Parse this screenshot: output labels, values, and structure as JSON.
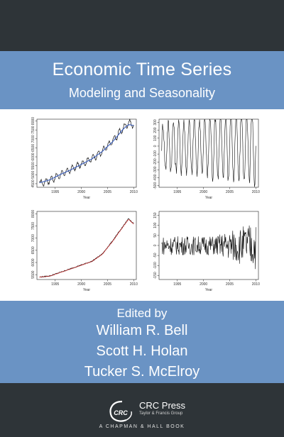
{
  "cover": {
    "title": "Economic Time Series",
    "subtitle": "Modeling and Seasonality",
    "edited_by": "Edited by",
    "editors": [
      "William R. Bell",
      "Scott H. Holan",
      "Tucker S. McElroy"
    ],
    "publisher_logo_text": "CRC",
    "publisher_name": "CRC Press",
    "publisher_group": "Taylor & Francis Group",
    "series_line": "A CHAPMAN & HALL BOOK"
  },
  "colors": {
    "band_dark": "#2e3438",
    "band_blue": "#6a93c4",
    "panel_white": "#ffffff",
    "trend_blue": "#3a5fbf",
    "trend_red": "#cc2222"
  },
  "chart_data": [
    {
      "type": "line",
      "x": [
        1992,
        1994,
        1996,
        1998,
        2000,
        2002,
        2004,
        2006,
        2008,
        2009,
        2010
      ],
      "series": [
        {
          "values": [
            4500,
            4700,
            5000,
            5300,
            5600,
            5900,
            6300,
            6900,
            7600,
            7900,
            7800
          ]
        },
        {
          "values": [
            4550,
            4720,
            5020,
            5280,
            5580,
            5880,
            6300,
            6850,
            7550,
            7800,
            7750
          ]
        }
      ],
      "xticks": [
        "1995",
        "2000",
        "2005",
        "2010"
      ],
      "yticks": [
        "4500",
        "5000",
        "5500",
        "6000",
        "6500",
        "7000",
        "7500",
        "8000"
      ],
      "xlabel": "Year",
      "ylim": [
        4300,
        8100
      ],
      "xlim": [
        1991.5,
        2010.5
      ]
    },
    {
      "type": "line",
      "x": [
        1992,
        2010
      ],
      "series": [
        {
          "values": [
            0,
            0
          ]
        }
      ],
      "amplitude": 400,
      "xticks": [
        "1995",
        "2000",
        "2005",
        "2010"
      ],
      "yticks": [
        "-500",
        "-400",
        "-300",
        "-200",
        "-100",
        "0",
        "100",
        "200",
        "300"
      ],
      "xlabel": "Year",
      "ylim": [
        -520,
        340
      ],
      "xlim": [
        1991.5,
        2010.5
      ]
    },
    {
      "type": "line",
      "x": [
        1992,
        1994,
        1996,
        1998,
        2000,
        2002,
        2004,
        2006,
        2008,
        2009,
        2010
      ],
      "series": [
        {
          "values": [
            5400,
            5450,
            5600,
            5750,
            5900,
            6050,
            6350,
            6900,
            7500,
            7800,
            7600
          ]
        },
        {
          "values": [
            5400,
            5440,
            5590,
            5740,
            5890,
            6040,
            6340,
            6880,
            7480,
            7780,
            7580
          ]
        }
      ],
      "xticks": [
        "1995",
        "2000",
        "2005",
        "2010"
      ],
      "yticks": [
        "5500",
        "6000",
        "6500",
        "7000",
        "7500",
        "8000"
      ],
      "xlabel": "Year",
      "ylim": [
        5300,
        8100
      ],
      "xlim": [
        1991.5,
        2010.5
      ]
    },
    {
      "type": "line",
      "x": [
        1992,
        2010
      ],
      "series": [
        {
          "values": [
            0,
            0
          ]
        }
      ],
      "amplitude": 80,
      "xticks": [
        "1995",
        "2000",
        "2005",
        "2010"
      ],
      "yticks": [
        "-150",
        "-100",
        "-50",
        "0",
        "50",
        "100",
        "150"
      ],
      "xlabel": "Year",
      "ylim": [
        -170,
        170
      ],
      "xlim": [
        1991.5,
        2010.5
      ]
    }
  ]
}
